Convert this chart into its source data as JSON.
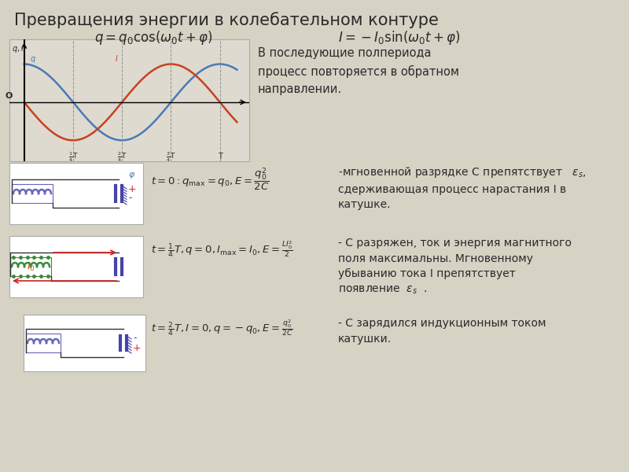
{
  "title": "Превращения энергии в колебательном контуре",
  "formula1": "$q = q_0\\cos(\\omega_0 t + \\varphi)$",
  "formula2": "$I = -I_0\\sin(\\omega_0 t + \\varphi)$",
  "bg_color": "#d6d2c4",
  "graph_bg": "#dedad0",
  "panel1_text": "В последующие полпериода\nпроцесс повторяется в обратном\nнаправлении.",
  "panel2_formula": "$t=0: q_{\\mathrm{пах}}=q_0, E=\\dfrac{q_0^2}{2C}$",
  "panel2_text": "-мгновенной разрядке С препятствует   $\\varepsilon_s$,\nсдерживающая процесс нарастания I в\nкатушке.",
  "panel3_formula": "$t=\\dfrac{1}{4}T, q=0, I_{\\mathrm{max}}=I_0, E=\\dfrac{LI_0^2}{2}$",
  "panel3_text": "- С разряжен, ток и энергия магнитного\nполя максимальны. Мгновенному\nубыванию тока I препятствует\nпоявление  $\\varepsilon_s$  .",
  "panel4_formula": "$t=\\dfrac{2}{4}T, I=0, q=-q_0, E=\\dfrac{q_0^2}{2C}$",
  "panel4_text": "- С зарядился индукционным током\nкатушки.",
  "text_color": "#2a2a2a",
  "blue_color": "#4a7ab5",
  "red_color": "#c84020",
  "green_color": "#4a8a20",
  "coil_color1": "#6666bb",
  "coil_color3": "#3a8a3a",
  "wire_color": "#333355"
}
